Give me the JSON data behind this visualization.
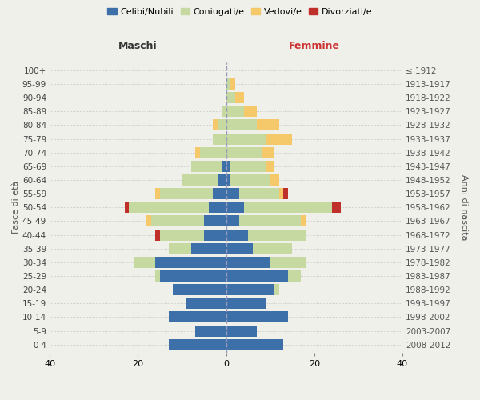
{
  "age_groups": [
    "0-4",
    "5-9",
    "10-14",
    "15-19",
    "20-24",
    "25-29",
    "30-34",
    "35-39",
    "40-44",
    "45-49",
    "50-54",
    "55-59",
    "60-64",
    "65-69",
    "70-74",
    "75-79",
    "80-84",
    "85-89",
    "90-94",
    "95-99",
    "100+"
  ],
  "birth_years": [
    "2008-2012",
    "2003-2007",
    "1998-2002",
    "1993-1997",
    "1988-1992",
    "1983-1987",
    "1978-1982",
    "1973-1977",
    "1968-1972",
    "1963-1967",
    "1958-1962",
    "1953-1957",
    "1948-1952",
    "1943-1947",
    "1938-1942",
    "1933-1937",
    "1928-1932",
    "1923-1927",
    "1918-1922",
    "1913-1917",
    "≤ 1912"
  ],
  "colors": {
    "celibi": "#3d6fa8",
    "coniugati": "#c5d9a0",
    "vedovi": "#f5c96a",
    "divorziati": "#c0302a"
  },
  "maschi": {
    "celibi": [
      13,
      7,
      13,
      9,
      12,
      15,
      16,
      8,
      5,
      5,
      4,
      3,
      2,
      1,
      0,
      0,
      0,
      0,
      0,
      0,
      0
    ],
    "coniugati": [
      0,
      0,
      0,
      0,
      0,
      1,
      5,
      5,
      10,
      12,
      18,
      12,
      8,
      7,
      6,
      3,
      2,
      1,
      0,
      0,
      0
    ],
    "vedovi": [
      0,
      0,
      0,
      0,
      0,
      0,
      0,
      0,
      0,
      1,
      0,
      1,
      0,
      0,
      1,
      0,
      1,
      0,
      0,
      0,
      0
    ],
    "divorziati": [
      0,
      0,
      0,
      0,
      0,
      0,
      0,
      0,
      1,
      0,
      1,
      0,
      0,
      0,
      0,
      0,
      0,
      0,
      0,
      0,
      0
    ]
  },
  "femmine": {
    "celibi": [
      13,
      7,
      14,
      9,
      11,
      14,
      10,
      6,
      5,
      3,
      4,
      3,
      1,
      1,
      0,
      0,
      0,
      0,
      0,
      0,
      0
    ],
    "coniugati": [
      0,
      0,
      0,
      0,
      1,
      3,
      8,
      9,
      13,
      14,
      20,
      9,
      9,
      8,
      8,
      9,
      7,
      4,
      2,
      1,
      0
    ],
    "vedovi": [
      0,
      0,
      0,
      0,
      0,
      0,
      0,
      0,
      0,
      1,
      0,
      1,
      2,
      2,
      3,
      6,
      5,
      3,
      2,
      1,
      0
    ],
    "divorziati": [
      0,
      0,
      0,
      0,
      0,
      0,
      0,
      0,
      0,
      0,
      2,
      1,
      0,
      0,
      0,
      0,
      0,
      0,
      0,
      0,
      0
    ]
  },
  "xlim": 40,
  "ylabel_left": "Fasce di età",
  "ylabel_right": "Anni di nascita",
  "xlabel_left": "Maschi",
  "xlabel_right": "Femmine",
  "legend_labels": [
    "Celibi/Nubili",
    "Coniugati/e",
    "Vedovi/e",
    "Divorziati/e"
  ],
  "bg_color": "#f0f0eb",
  "bar_height": 0.82
}
